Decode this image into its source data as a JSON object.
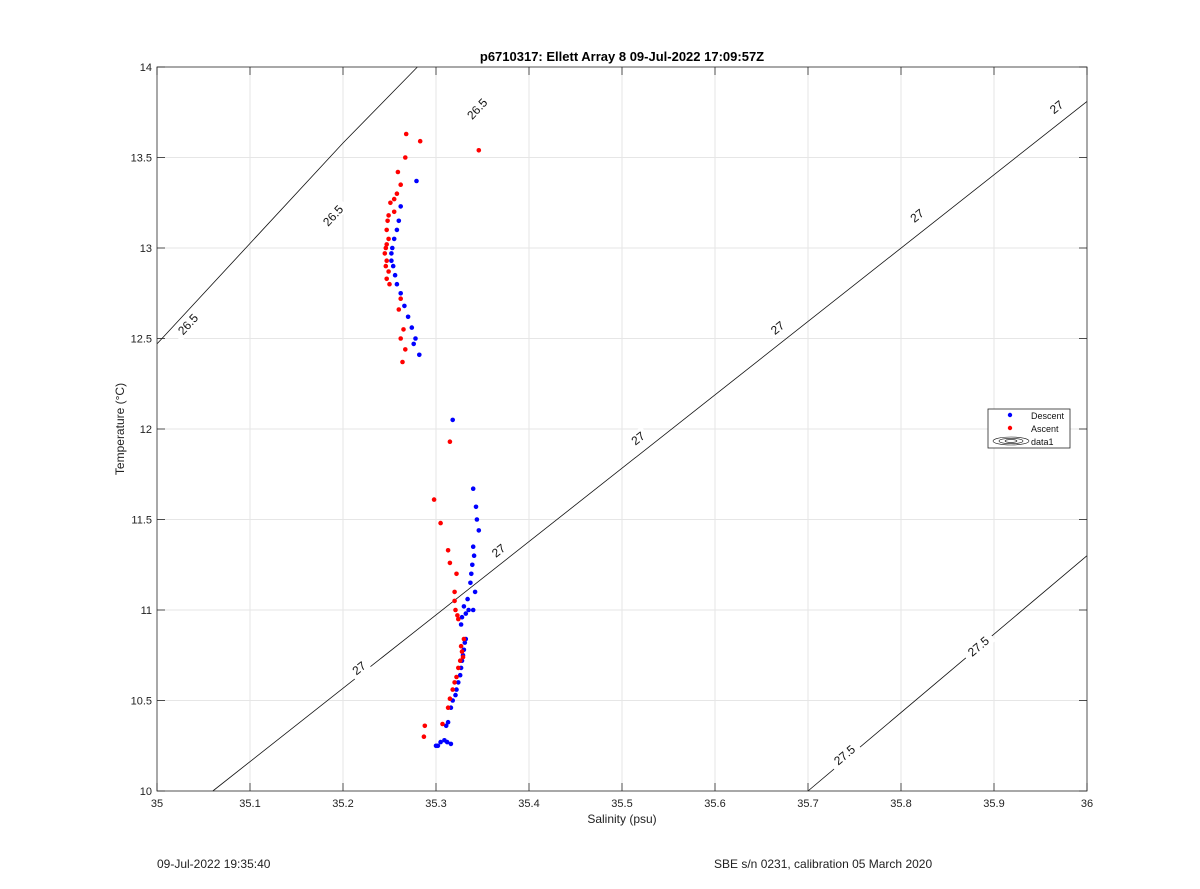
{
  "chart_data": {
    "type": "scatter",
    "title": "p6710317: Ellett Array 8 09-Jul-2022 17:09:57Z",
    "xlabel": "Salinity (psu)",
    "ylabel": "Temperature (°C)",
    "xlim": [
      35,
      36
    ],
    "ylim": [
      10,
      14
    ],
    "xticks": [
      "35",
      "35.1",
      "35.2",
      "35.3",
      "35.4",
      "35.5",
      "35.6",
      "35.7",
      "35.8",
      "35.9",
      "36"
    ],
    "yticks": [
      "10",
      "10.5",
      "11",
      "11.5",
      "12",
      "12.5",
      "13",
      "13.5",
      "14"
    ],
    "grid": true,
    "legend_position": "right",
    "series": [
      {
        "name": "Descent",
        "color": "#0000ff",
        "points": [
          [
            35.279,
            13.37
          ],
          [
            35.262,
            13.23
          ],
          [
            35.26,
            13.15
          ],
          [
            35.258,
            13.1
          ],
          [
            35.255,
            13.05
          ],
          [
            35.253,
            13.0
          ],
          [
            35.252,
            12.97
          ],
          [
            35.252,
            12.93
          ],
          [
            35.254,
            12.9
          ],
          [
            35.256,
            12.85
          ],
          [
            35.258,
            12.8
          ],
          [
            35.262,
            12.75
          ],
          [
            35.266,
            12.68
          ],
          [
            35.27,
            12.62
          ],
          [
            35.274,
            12.56
          ],
          [
            35.278,
            12.5
          ],
          [
            35.276,
            12.47
          ],
          [
            35.282,
            12.41
          ],
          [
            35.318,
            12.05
          ],
          [
            35.34,
            11.67
          ],
          [
            35.343,
            11.57
          ],
          [
            35.344,
            11.5
          ],
          [
            35.346,
            11.44
          ],
          [
            35.34,
            11.35
          ],
          [
            35.341,
            11.3
          ],
          [
            35.339,
            11.25
          ],
          [
            35.338,
            11.2
          ],
          [
            35.337,
            11.15
          ],
          [
            35.342,
            11.1
          ],
          [
            35.334,
            11.06
          ],
          [
            35.33,
            11.02
          ],
          [
            35.335,
            11.0
          ],
          [
            35.34,
            11.0
          ],
          [
            35.332,
            10.98
          ],
          [
            35.328,
            10.96
          ],
          [
            35.327,
            10.92
          ],
          [
            35.332,
            10.84
          ],
          [
            35.331,
            10.82
          ],
          [
            35.33,
            10.78
          ],
          [
            35.329,
            10.75
          ],
          [
            35.328,
            10.72
          ],
          [
            35.327,
            10.68
          ],
          [
            35.326,
            10.64
          ],
          [
            35.324,
            10.6
          ],
          [
            35.322,
            10.56
          ],
          [
            35.321,
            10.53
          ],
          [
            35.318,
            10.5
          ],
          [
            35.316,
            10.46
          ],
          [
            35.313,
            10.38
          ],
          [
            35.311,
            10.36
          ],
          [
            35.309,
            10.28
          ],
          [
            35.312,
            10.27
          ],
          [
            35.316,
            10.26
          ],
          [
            35.305,
            10.27
          ],
          [
            35.302,
            10.25
          ],
          [
            35.3,
            10.25
          ]
        ]
      },
      {
        "name": "Ascent",
        "color": "#ff0000",
        "points": [
          [
            35.268,
            13.63
          ],
          [
            35.283,
            13.59
          ],
          [
            35.346,
            13.54
          ],
          [
            35.267,
            13.5
          ],
          [
            35.259,
            13.42
          ],
          [
            35.262,
            13.35
          ],
          [
            35.258,
            13.3
          ],
          [
            35.255,
            13.27
          ],
          [
            35.251,
            13.25
          ],
          [
            35.255,
            13.2
          ],
          [
            35.249,
            13.18
          ],
          [
            35.248,
            13.15
          ],
          [
            35.247,
            13.1
          ],
          [
            35.249,
            13.05
          ],
          [
            35.247,
            13.02
          ],
          [
            35.246,
            13.0
          ],
          [
            35.245,
            12.97
          ],
          [
            35.247,
            12.93
          ],
          [
            35.246,
            12.9
          ],
          [
            35.249,
            12.87
          ],
          [
            35.247,
            12.83
          ],
          [
            35.25,
            12.8
          ],
          [
            35.262,
            12.72
          ],
          [
            35.26,
            12.66
          ],
          [
            35.265,
            12.55
          ],
          [
            35.262,
            12.5
          ],
          [
            35.267,
            12.44
          ],
          [
            35.264,
            12.37
          ],
          [
            35.315,
            11.93
          ],
          [
            35.298,
            11.61
          ],
          [
            35.305,
            11.48
          ],
          [
            35.313,
            11.33
          ],
          [
            35.315,
            11.26
          ],
          [
            35.322,
            11.2
          ],
          [
            35.32,
            11.1
          ],
          [
            35.32,
            11.05
          ],
          [
            35.321,
            11.0
          ],
          [
            35.323,
            10.97
          ],
          [
            35.324,
            10.95
          ],
          [
            35.33,
            10.84
          ],
          [
            35.327,
            10.8
          ],
          [
            35.328,
            10.77
          ],
          [
            35.329,
            10.74
          ],
          [
            35.326,
            10.72
          ],
          [
            35.324,
            10.68
          ],
          [
            35.322,
            10.63
          ],
          [
            35.32,
            10.6
          ],
          [
            35.318,
            10.56
          ],
          [
            35.315,
            10.51
          ],
          [
            35.313,
            10.46
          ],
          [
            35.307,
            10.37
          ],
          [
            35.288,
            10.36
          ],
          [
            35.287,
            10.3
          ]
        ]
      }
    ],
    "legend_extra": "data1",
    "contours": [
      {
        "label": "26.5",
        "from": [
          35.0,
          12.47
        ],
        "to": [
          35.2,
          13.58
        ],
        "extend_to": [
          35.28,
          14.0
        ]
      },
      {
        "label": "27",
        "from": [
          35.06,
          10.0
        ],
        "to": [
          36.0,
          13.81
        ]
      },
      {
        "label": "27.5",
        "from": [
          35.7,
          10.0
        ],
        "to": [
          36.0,
          11.3
        ]
      }
    ],
    "contour_label_positions": [
      {
        "label": "26.5",
        "x": 35.033,
        "y": 12.58
      },
      {
        "label": "26.5",
        "x": 35.189,
        "y": 13.18
      },
      {
        "label": "26.5",
        "x": 35.344,
        "y": 13.77
      },
      {
        "label": "27",
        "x": 35.217,
        "y": 10.68
      },
      {
        "label": "27",
        "x": 35.367,
        "y": 11.33
      },
      {
        "label": "27",
        "x": 35.517,
        "y": 11.95
      },
      {
        "label": "27",
        "x": 35.667,
        "y": 12.56
      },
      {
        "label": "27",
        "x": 35.817,
        "y": 13.18
      },
      {
        "label": "27",
        "x": 35.967,
        "y": 13.78
      },
      {
        "label": "27.5",
        "x": 35.739,
        "y": 10.2
      },
      {
        "label": "27.5",
        "x": 35.883,
        "y": 10.8
      }
    ]
  },
  "footer": {
    "timestamp": "09-Jul-2022 19:35:40",
    "calibration": "SBE s/n 0231, calibration 05 March 2020"
  }
}
